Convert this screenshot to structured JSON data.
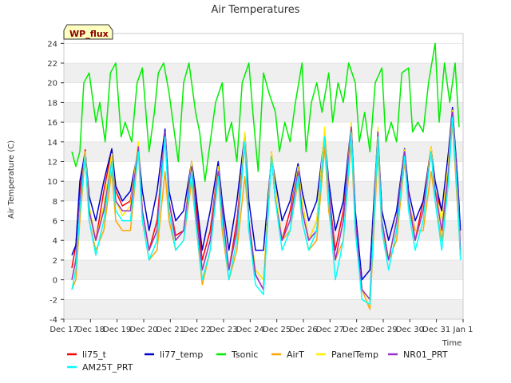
{
  "chart_data": {
    "type": "line",
    "title": "Air Temperatures",
    "xlabel": "Time",
    "ylabel": "Air Temperature (C)",
    "badge": "WP_flux",
    "ylim": [
      -4,
      25
    ],
    "yticks": [
      -4,
      -2,
      0,
      2,
      4,
      6,
      8,
      10,
      12,
      14,
      16,
      18,
      20,
      22,
      24
    ],
    "xlim": [
      0,
      15
    ],
    "xticks": [
      {
        "x": 0,
        "label": "Dec 17"
      },
      {
        "x": 1,
        "label": "Dec 18"
      },
      {
        "x": 2,
        "label": "Dec 19"
      },
      {
        "x": 3,
        "label": "Dec 20"
      },
      {
        "x": 4,
        "label": "Dec 21"
      },
      {
        "x": 5,
        "label": "Dec 22"
      },
      {
        "x": 6,
        "label": "Dec 23"
      },
      {
        "x": 7,
        "label": "Dec 24"
      },
      {
        "x": 8,
        "label": "Dec 25"
      },
      {
        "x": 9,
        "label": "Dec 26"
      },
      {
        "x": 10,
        "label": "Dec 27"
      },
      {
        "x": 11,
        "label": "Dec 28"
      },
      {
        "x": 12,
        "label": "Dec 29"
      },
      {
        "x": 13,
        "label": "Dec 30"
      },
      {
        "x": 14,
        "label": "Dec 31"
      },
      {
        "x": 15,
        "label": "Jan 1"
      }
    ],
    "grid": "horizontal bands",
    "legend_position": "bottom",
    "series": [
      {
        "name": "li75_t",
        "color": "#ff0000",
        "x": [
          0.3,
          0.45,
          0.6,
          0.8,
          0.95,
          1.2,
          1.5,
          1.8,
          1.95,
          2.2,
          2.5,
          2.8,
          2.95,
          3.2,
          3.5,
          3.8,
          3.95,
          4.2,
          4.5,
          4.8,
          4.95,
          5.2,
          5.5,
          5.8,
          5.95,
          6.2,
          6.5,
          6.8,
          6.95,
          7.2,
          7.5,
          7.8,
          7.95,
          8.2,
          8.5,
          8.8,
          8.95,
          9.2,
          9.5,
          9.8,
          9.95,
          10.2,
          10.5,
          10.8,
          10.95,
          11.2,
          11.5,
          11.8,
          11.95,
          12.2,
          12.5,
          12.8,
          12.95,
          13.2,
          13.5,
          13.8,
          13.95,
          14.2,
          14.45,
          14.6,
          14.8,
          14.9
        ],
        "y": [
          1.2,
          3.5,
          9,
          13.2,
          7,
          4,
          9,
          13.2,
          9,
          7.5,
          8,
          13.5,
          7,
          3,
          6,
          15,
          8,
          4.5,
          5,
          12,
          8,
          2,
          5,
          11.5,
          7,
          1,
          6,
          14.5,
          5,
          0.5,
          -1,
          13,
          9,
          4,
          7,
          11.2,
          8,
          4,
          6,
          14.8,
          9,
          3,
          7,
          15.5,
          5,
          -1,
          -2,
          15,
          5,
          2,
          6,
          13,
          8,
          4,
          8,
          13.5,
          9,
          7,
          12,
          17,
          9,
          2.5
        ]
      },
      {
        "name": "li77_temp",
        "color": "#0000cc",
        "x": [
          0.3,
          0.45,
          0.6,
          0.8,
          0.95,
          1.2,
          1.5,
          1.8,
          1.95,
          2.2,
          2.5,
          2.8,
          2.95,
          3.2,
          3.5,
          3.8,
          3.95,
          4.2,
          4.5,
          4.8,
          4.95,
          5.2,
          5.5,
          5.8,
          5.95,
          6.2,
          6.5,
          6.8,
          6.95,
          7.2,
          7.5,
          7.8,
          7.95,
          8.2,
          8.5,
          8.8,
          8.95,
          9.2,
          9.5,
          9.8,
          9.95,
          10.2,
          10.5,
          10.8,
          10.95,
          11.2,
          11.5,
          11.8,
          11.95,
          12.2,
          12.5,
          12.8,
          12.95,
          13.2,
          13.5,
          13.8,
          13.95,
          14.2,
          14.45,
          14.6,
          14.8,
          14.9
        ],
        "y": [
          2.5,
          3.5,
          10,
          13,
          8.5,
          6,
          10,
          13.3,
          9.5,
          8,
          9,
          13.3,
          9,
          5,
          9,
          15.3,
          9,
          6,
          7,
          12,
          9,
          3,
          7,
          12,
          8,
          3,
          8,
          14.8,
          8,
          3,
          3,
          12.5,
          10,
          6,
          8,
          11.8,
          9,
          6,
          8,
          14.8,
          10,
          5,
          8,
          15.8,
          7,
          0,
          1,
          15,
          7,
          4,
          7,
          13.3,
          9,
          6,
          8,
          13.3,
          10,
          7,
          13,
          17.5,
          10,
          5
        ]
      },
      {
        "name": "Tsonic",
        "color": "#00ee00",
        "x": [
          0.3,
          0.45,
          0.6,
          0.75,
          0.95,
          1.2,
          1.35,
          1.55,
          1.75,
          1.95,
          2.15,
          2.3,
          2.55,
          2.75,
          2.95,
          3.2,
          3.4,
          3.55,
          3.75,
          3.95,
          4.15,
          4.3,
          4.5,
          4.7,
          4.95,
          5.1,
          5.3,
          5.5,
          5.7,
          5.95,
          6.1,
          6.3,
          6.5,
          6.7,
          6.95,
          7.1,
          7.3,
          7.5,
          7.7,
          7.95,
          8.1,
          8.3,
          8.5,
          8.7,
          8.95,
          9.1,
          9.3,
          9.5,
          9.7,
          9.95,
          10.1,
          10.3,
          10.5,
          10.7,
          10.95,
          11.1,
          11.3,
          11.5,
          11.7,
          11.95,
          12.1,
          12.3,
          12.5,
          12.7,
          12.95,
          13.1,
          13.3,
          13.5,
          13.7,
          13.95,
          14.1,
          14.3,
          14.5,
          14.7,
          14.85
        ],
        "y": [
          13,
          11.5,
          13,
          20,
          21,
          16,
          18,
          14,
          21,
          22,
          14.5,
          16,
          14,
          20,
          21.5,
          13,
          17,
          21,
          22,
          19,
          15,
          12,
          20,
          22,
          17,
          15,
          10,
          14,
          18,
          20,
          14,
          16,
          12,
          20,
          22,
          17,
          11,
          21,
          19,
          17,
          13,
          16,
          14,
          18,
          22,
          13,
          18,
          20,
          17,
          21,
          16,
          20,
          18,
          22,
          20,
          14,
          17,
          13,
          20,
          21.5,
          14,
          16,
          14,
          21,
          21.5,
          15,
          16,
          15,
          20,
          24,
          16,
          22,
          18,
          22,
          15.5
        ]
      },
      {
        "name": "AirT",
        "color": "#ffa500",
        "x": [
          0.3,
          0.45,
          0.6,
          0.8,
          0.95,
          1.2,
          1.5,
          1.8,
          1.95,
          2.2,
          2.5,
          2.8,
          2.95,
          3.2,
          3.5,
          3.8,
          3.95,
          4.2,
          4.5,
          4.8,
          4.95,
          5.2,
          5.5,
          5.8,
          5.95,
          6.2,
          6.5,
          6.8,
          6.95,
          7.2,
          7.5,
          7.8,
          7.95,
          8.2,
          8.5,
          8.8,
          8.95,
          9.2,
          9.5,
          9.8,
          9.95,
          10.2,
          10.5,
          10.8,
          10.95,
          11.2,
          11.5,
          11.8,
          11.95,
          12.2,
          12.5,
          12.8,
          12.95,
          13.2,
          13.5,
          13.8,
          13.95,
          14.2,
          14.45,
          14.6,
          14.8,
          14.9
        ],
        "y": [
          -1,
          0,
          6,
          12.5,
          6,
          3,
          5,
          11,
          6,
          5,
          5,
          13,
          6,
          2,
          3,
          11,
          6,
          3,
          4,
          10,
          6,
          -0.5,
          3,
          10.5,
          5,
          0,
          3,
          10.5,
          6,
          1,
          0,
          12.5,
          8,
          4,
          5,
          10,
          6,
          3,
          4,
          13.5,
          7,
          2,
          4,
          14,
          5,
          -1,
          -3,
          13,
          5,
          2,
          4,
          12,
          8,
          5,
          5,
          11,
          8,
          4,
          11,
          16,
          7,
          2.5
        ]
      },
      {
        "name": "PanelTemp",
        "color": "#ffee00",
        "x": [
          0.3,
          0.45,
          0.6,
          0.8,
          0.95,
          1.2,
          1.5,
          1.8,
          1.95,
          2.2,
          2.5,
          2.8,
          2.95,
          3.2,
          3.5,
          3.8,
          3.95,
          4.2,
          4.5,
          4.8,
          4.95,
          5.2,
          5.5,
          5.8,
          5.95,
          6.2,
          6.5,
          6.8,
          6.95,
          7.2,
          7.5,
          7.8,
          7.95,
          8.2,
          8.5,
          8.8,
          8.95,
          9.2,
          9.5,
          9.8,
          9.95,
          10.2,
          10.5,
          10.8,
          10.95,
          11.2,
          11.5,
          11.8,
          11.95,
          12.2,
          12.5,
          12.8,
          12.95,
          13.2,
          13.5,
          13.8,
          13.95,
          14.2,
          14.45,
          14.6,
          14.8,
          14.9
        ],
        "y": [
          0,
          2,
          8,
          13,
          7.5,
          4,
          7.5,
          12.8,
          8,
          6.5,
          7.5,
          14,
          7,
          3,
          5,
          15,
          8,
          4,
          5,
          12,
          7,
          1,
          4,
          11.5,
          7,
          1,
          5,
          15,
          6,
          1,
          0,
          13,
          9,
          4,
          6,
          11.5,
          8,
          4,
          6,
          15.5,
          9,
          2,
          6,
          16,
          6,
          -1,
          -2,
          15.5,
          6,
          2,
          6,
          13.2,
          8,
          4,
          7,
          13.5,
          9,
          6,
          12,
          17.2,
          9,
          3
        ]
      },
      {
        "name": "NR01_PRT",
        "color": "#9932cc",
        "x": [
          0.3,
          0.45,
          0.6,
          0.8,
          0.95,
          1.2,
          1.5,
          1.8,
          1.95,
          2.2,
          2.5,
          2.8,
          2.95,
          3.2,
          3.5,
          3.8,
          3.95,
          4.2,
          4.5,
          4.8,
          4.95,
          5.2,
          5.5,
          5.8,
          5.95,
          6.2,
          6.5,
          6.8,
          6.95,
          7.2,
          7.5,
          7.8,
          7.95,
          8.2,
          8.5,
          8.8,
          8.95,
          9.2,
          9.5,
          9.8,
          9.95,
          10.2,
          10.5,
          10.8,
          10.95,
          11.2,
          11.5,
          11.8,
          11.95,
          12.2,
          12.5,
          12.8,
          12.95,
          13.2,
          13.5,
          13.8,
          13.95,
          14.2,
          14.45,
          14.6,
          14.8,
          14.9
        ],
        "y": [
          0,
          2,
          8,
          12.5,
          7,
          4,
          7,
          12,
          8,
          7,
          7,
          13.5,
          7,
          3,
          5,
          15,
          8,
          4,
          5,
          11.5,
          7,
          1,
          4,
          11,
          7,
          1,
          5,
          14,
          6,
          0.5,
          -1,
          12.5,
          8,
          4,
          6,
          11,
          7,
          4,
          5,
          14.5,
          9,
          2,
          6,
          15.5,
          6,
          -1,
          -2,
          15,
          6,
          2,
          6,
          13,
          8,
          4,
          7,
          13,
          9,
          5,
          11,
          17,
          9,
          3
        ]
      },
      {
        "name": "AM25T_PRT",
        "color": "#00ffff",
        "x": [
          0.3,
          0.45,
          0.6,
          0.8,
          0.95,
          1.2,
          1.5,
          1.8,
          1.95,
          2.2,
          2.5,
          2.8,
          2.95,
          3.2,
          3.5,
          3.8,
          3.95,
          4.2,
          4.5,
          4.8,
          4.95,
          5.2,
          5.5,
          5.8,
          5.95,
          6.2,
          6.5,
          6.8,
          6.95,
          7.2,
          7.5,
          7.8,
          7.95,
          8.2,
          8.5,
          8.8,
          8.95,
          9.2,
          9.5,
          9.8,
          9.95,
          10.2,
          10.5,
          10.8,
          10.95,
          11.2,
          11.5,
          11.8,
          11.95,
          12.2,
          12.5,
          12.8,
          12.95,
          13.2,
          13.5,
          13.8,
          13.95,
          14.2,
          14.45,
          14.6,
          14.8,
          14.9
        ],
        "y": [
          -1,
          1,
          7,
          12.5,
          6,
          2.5,
          6,
          12,
          7,
          6,
          6,
          13,
          6,
          2,
          4,
          14.5,
          7,
          3,
          4,
          11,
          6,
          0,
          3,
          10.5,
          6,
          0,
          4,
          14,
          5,
          -0.5,
          -1.5,
          12.5,
          8,
          3,
          5,
          10.5,
          6,
          3,
          5,
          14.5,
          8,
          0,
          4,
          15,
          5,
          -2,
          -2.5,
          14.5,
          5,
          1,
          5,
          12.5,
          7,
          3,
          6,
          13,
          8,
          3,
          10,
          16.5,
          8,
          2
        ]
      }
    ]
  }
}
